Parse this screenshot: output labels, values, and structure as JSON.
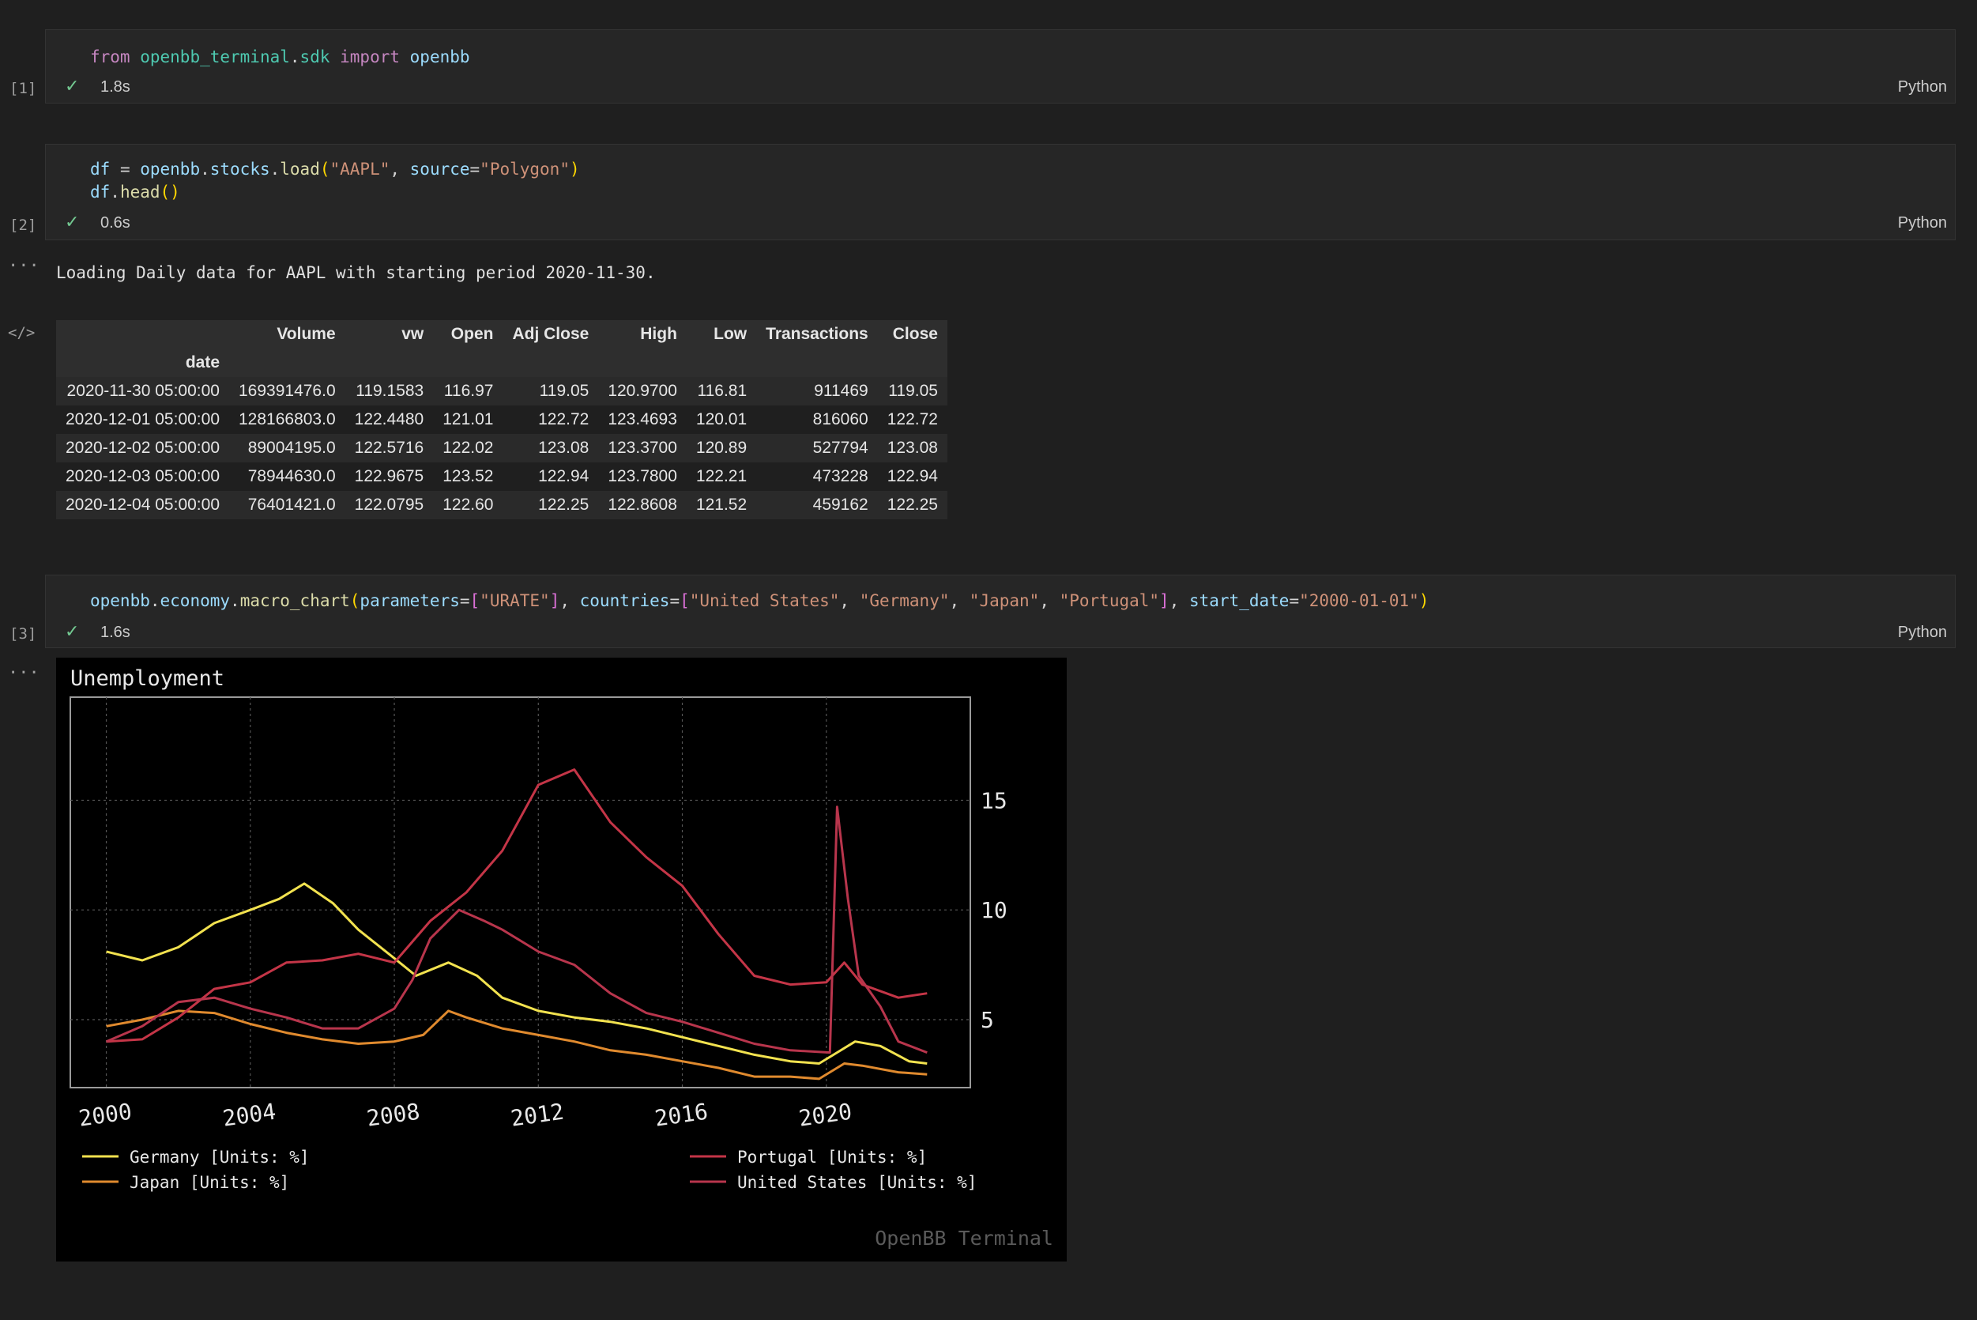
{
  "cells": [
    {
      "exec_count": "[1]",
      "lines": [
        [
          {
            "t": "from",
            "c": "kw"
          },
          {
            "t": " "
          },
          {
            "t": "openbb_terminal",
            "c": "mod"
          },
          {
            "t": "."
          },
          {
            "t": "sdk",
            "c": "mod"
          },
          {
            "t": " "
          },
          {
            "t": "import",
            "c": "kw"
          },
          {
            "t": " "
          },
          {
            "t": "openbb",
            "c": "var"
          }
        ]
      ],
      "status_icon": "check-icon",
      "time": "1.8s",
      "language": "Python"
    },
    {
      "exec_count": "[2]",
      "lines": [
        [
          {
            "t": "df",
            "c": "var"
          },
          {
            "t": " = "
          },
          {
            "t": "openbb",
            "c": "var"
          },
          {
            "t": "."
          },
          {
            "t": "stocks",
            "c": "var"
          },
          {
            "t": "."
          },
          {
            "t": "load",
            "c": "fn"
          },
          {
            "t": "(",
            "c": "par"
          },
          {
            "t": "\"AAPL\"",
            "c": "str"
          },
          {
            "t": ", "
          },
          {
            "t": "source",
            "c": "var"
          },
          {
            "t": "="
          },
          {
            "t": "\"Polygon\"",
            "c": "str"
          },
          {
            "t": ")",
            "c": "par"
          }
        ],
        [
          {
            "t": "df",
            "c": "var"
          },
          {
            "t": "."
          },
          {
            "t": "head",
            "c": "fn"
          },
          {
            "t": "()",
            "c": "par"
          }
        ]
      ],
      "status_icon": "check-icon",
      "time": "0.6s",
      "language": "Python"
    },
    {
      "exec_count": "[3]",
      "lines": [
        [
          {
            "t": "openbb",
            "c": "var"
          },
          {
            "t": "."
          },
          {
            "t": "economy",
            "c": "var"
          },
          {
            "t": "."
          },
          {
            "t": "macro_chart",
            "c": "fn"
          },
          {
            "t": "(",
            "c": "par"
          },
          {
            "t": "parameters",
            "c": "var"
          },
          {
            "t": "="
          },
          {
            "t": "[",
            "c": "bra"
          },
          {
            "t": "\"URATE\"",
            "c": "str"
          },
          {
            "t": "]",
            "c": "bra"
          },
          {
            "t": ", "
          },
          {
            "t": "countries",
            "c": "var"
          },
          {
            "t": "="
          },
          {
            "t": "[",
            "c": "bra"
          },
          {
            "t": "\"United States\"",
            "c": "str"
          },
          {
            "t": ", "
          },
          {
            "t": "\"Germany\"",
            "c": "str"
          },
          {
            "t": ", "
          },
          {
            "t": "\"Japan\"",
            "c": "str"
          },
          {
            "t": ", "
          },
          {
            "t": "\"Portugal\"",
            "c": "str"
          },
          {
            "t": "]",
            "c": "bra"
          },
          {
            "t": ", "
          },
          {
            "t": "start_date",
            "c": "var"
          },
          {
            "t": "="
          },
          {
            "t": "\"2000-01-01\"",
            "c": "str"
          },
          {
            "t": ")",
            "c": "par"
          }
        ]
      ],
      "status_icon": "check-icon",
      "time": "1.6s",
      "language": "Python"
    }
  ],
  "output_markers": {
    "ellipsis": "...",
    "code_icon": "</>"
  },
  "output_text": "Loading Daily data for AAPL with starting period 2020-11-30.",
  "dataframe": {
    "columns": [
      "Volume",
      "vw",
      "Open",
      "Adj Close",
      "High",
      "Low",
      "Transactions",
      "Close"
    ],
    "index_name": "date",
    "rows": [
      [
        "2020-11-30 05:00:00",
        "169391476.0",
        "119.1583",
        "116.97",
        "119.05",
        "120.9700",
        "116.81",
        "911469",
        "119.05"
      ],
      [
        "2020-12-01 05:00:00",
        "128166803.0",
        "122.4480",
        "121.01",
        "122.72",
        "123.4693",
        "120.01",
        "816060",
        "122.72"
      ],
      [
        "2020-12-02 05:00:00",
        "89004195.0",
        "122.5716",
        "122.02",
        "123.08",
        "123.3700",
        "120.89",
        "527794",
        "123.08"
      ],
      [
        "2020-12-03 05:00:00",
        "78944630.0",
        "122.9675",
        "123.52",
        "122.94",
        "123.7800",
        "122.21",
        "473228",
        "122.94"
      ],
      [
        "2020-12-04 05:00:00",
        "76401421.0",
        "122.0795",
        "122.60",
        "122.25",
        "122.8608",
        "121.52",
        "459162",
        "122.25"
      ]
    ]
  },
  "chart_data": {
    "type": "line",
    "title": "Unemployment",
    "watermark": "OpenBB Terminal",
    "xlim": [
      1999.0,
      2024.0
    ],
    "ylim": [
      1.9,
      19.7
    ],
    "x_ticks": [
      2000,
      2004,
      2008,
      2012,
      2016,
      2020
    ],
    "y_ticks": [
      5,
      10,
      15
    ],
    "grid": true,
    "legend_position": "bottom",
    "series": [
      {
        "name": "Germany [Units: %]",
        "color": "#f2e24f",
        "points": [
          [
            2000.0,
            8.1
          ],
          [
            2001.0,
            7.7
          ],
          [
            2002.0,
            8.3
          ],
          [
            2003.0,
            9.4
          ],
          [
            2004.0,
            10.0
          ],
          [
            2004.8,
            10.5
          ],
          [
            2005.5,
            11.2
          ],
          [
            2006.3,
            10.3
          ],
          [
            2007.0,
            9.1
          ],
          [
            2008.0,
            7.8
          ],
          [
            2008.6,
            7.0
          ],
          [
            2009.5,
            7.6
          ],
          [
            2010.3,
            7.0
          ],
          [
            2011.0,
            6.0
          ],
          [
            2012.0,
            5.4
          ],
          [
            2013.0,
            5.1
          ],
          [
            2014.0,
            4.9
          ],
          [
            2015.0,
            4.6
          ],
          [
            2016.0,
            4.2
          ],
          [
            2017.0,
            3.8
          ],
          [
            2018.0,
            3.4
          ],
          [
            2019.0,
            3.1
          ],
          [
            2019.8,
            3.0
          ],
          [
            2020.3,
            3.5
          ],
          [
            2020.8,
            4.0
          ],
          [
            2021.5,
            3.8
          ],
          [
            2022.3,
            3.1
          ],
          [
            2022.8,
            3.0
          ]
        ]
      },
      {
        "name": "Japan [Units: %]",
        "color": "#e08a2e",
        "points": [
          [
            2000.0,
            4.7
          ],
          [
            2001.0,
            5.0
          ],
          [
            2002.0,
            5.4
          ],
          [
            2003.0,
            5.3
          ],
          [
            2004.0,
            4.8
          ],
          [
            2005.0,
            4.4
          ],
          [
            2006.0,
            4.1
          ],
          [
            2007.0,
            3.9
          ],
          [
            2008.0,
            4.0
          ],
          [
            2008.8,
            4.3
          ],
          [
            2009.5,
            5.4
          ],
          [
            2010.0,
            5.1
          ],
          [
            2011.0,
            4.6
          ],
          [
            2012.0,
            4.3
          ],
          [
            2013.0,
            4.0
          ],
          [
            2014.0,
            3.6
          ],
          [
            2015.0,
            3.4
          ],
          [
            2016.0,
            3.1
          ],
          [
            2017.0,
            2.8
          ],
          [
            2018.0,
            2.4
          ],
          [
            2019.0,
            2.4
          ],
          [
            2019.8,
            2.3
          ],
          [
            2020.5,
            3.0
          ],
          [
            2021.0,
            2.9
          ],
          [
            2022.0,
            2.6
          ],
          [
            2022.8,
            2.5
          ]
        ]
      },
      {
        "name": "Portugal [Units: %]",
        "color": "#c43547",
        "points": [
          [
            2000.0,
            4.0
          ],
          [
            2001.0,
            4.1
          ],
          [
            2002.0,
            5.1
          ],
          [
            2003.0,
            6.4
          ],
          [
            2004.0,
            6.7
          ],
          [
            2005.0,
            7.6
          ],
          [
            2006.0,
            7.7
          ],
          [
            2007.0,
            8.0
          ],
          [
            2008.0,
            7.6
          ],
          [
            2009.0,
            9.5
          ],
          [
            2010.0,
            10.8
          ],
          [
            2011.0,
            12.7
          ],
          [
            2012.0,
            15.7
          ],
          [
            2013.0,
            16.4
          ],
          [
            2014.0,
            14.0
          ],
          [
            2015.0,
            12.4
          ],
          [
            2016.0,
            11.1
          ],
          [
            2017.0,
            8.9
          ],
          [
            2018.0,
            7.0
          ],
          [
            2019.0,
            6.6
          ],
          [
            2020.0,
            6.7
          ],
          [
            2020.5,
            7.6
          ],
          [
            2021.0,
            6.6
          ],
          [
            2022.0,
            6.0
          ],
          [
            2022.8,
            6.2
          ]
        ]
      },
      {
        "name": "United States [Units: %]",
        "color": "#b8354c",
        "points": [
          [
            2000.0,
            4.0
          ],
          [
            2001.0,
            4.7
          ],
          [
            2002.0,
            5.8
          ],
          [
            2003.0,
            6.0
          ],
          [
            2004.0,
            5.5
          ],
          [
            2005.0,
            5.1
          ],
          [
            2006.0,
            4.6
          ],
          [
            2007.0,
            4.6
          ],
          [
            2008.0,
            5.5
          ],
          [
            2008.5,
            6.8
          ],
          [
            2009.0,
            8.7
          ],
          [
            2009.8,
            10.0
          ],
          [
            2010.5,
            9.5
          ],
          [
            2011.0,
            9.1
          ],
          [
            2012.0,
            8.1
          ],
          [
            2013.0,
            7.5
          ],
          [
            2014.0,
            6.2
          ],
          [
            2015.0,
            5.3
          ],
          [
            2016.0,
            4.9
          ],
          [
            2017.0,
            4.4
          ],
          [
            2018.0,
            3.9
          ],
          [
            2019.0,
            3.6
          ],
          [
            2020.1,
            3.5
          ],
          [
            2020.3,
            14.7
          ],
          [
            2020.6,
            10.5
          ],
          [
            2020.9,
            7.0
          ],
          [
            2021.5,
            5.6
          ],
          [
            2022.0,
            4.0
          ],
          [
            2022.8,
            3.5
          ]
        ]
      }
    ]
  }
}
